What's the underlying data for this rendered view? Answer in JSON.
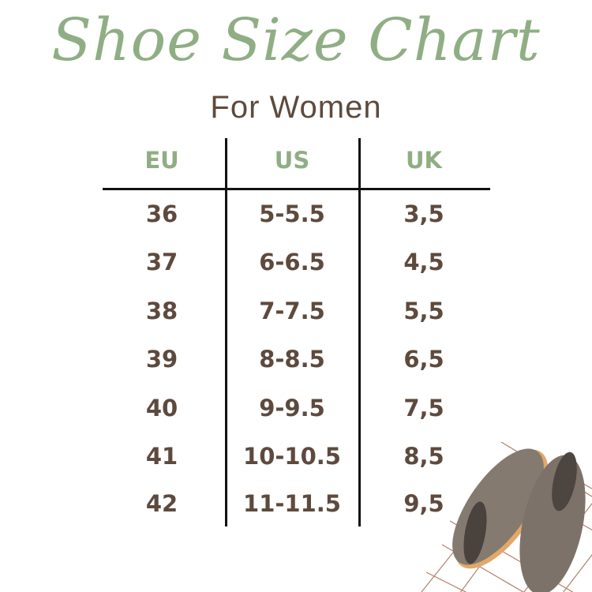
{
  "title": "Shoe Size Chart",
  "subtitle": "For Women",
  "colors": {
    "accent_green": "#8fae84",
    "text_brown": "#5e4a3d",
    "grid_line": "#a0604a",
    "felt_gray": "#857a70",
    "sole": "#e2a868"
  },
  "table": {
    "headers": [
      "EU",
      "US",
      "UK"
    ],
    "rows": [
      [
        "36",
        "5-5.5",
        "3,5"
      ],
      [
        "37",
        "6-6.5",
        "4,5"
      ],
      [
        "38",
        "7-7.5",
        "5,5"
      ],
      [
        "39",
        "8-8.5",
        "6,5"
      ],
      [
        "40",
        "9-9.5",
        "7,5"
      ],
      [
        "41",
        "10-10.5",
        "8,5"
      ],
      [
        "42",
        "11-11.5",
        "9,5"
      ]
    ]
  },
  "image": {
    "icon": "felt-slippers-photo"
  }
}
